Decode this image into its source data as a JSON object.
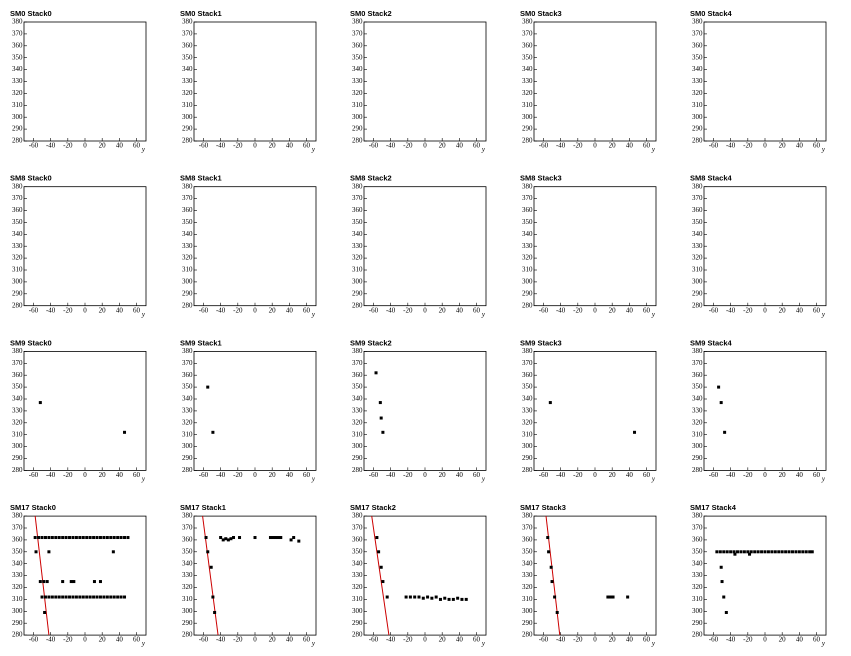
{
  "chart_data": [
    {
      "type": "scatter",
      "title": "SM0 Stack0",
      "xlabel": "y",
      "xlim": [
        -71,
        71
      ],
      "ylim": [
        280,
        380
      ],
      "xticks": [
        -60,
        -40,
        -20,
        0,
        20,
        40,
        60
      ],
      "yticks": [
        280,
        290,
        300,
        310,
        320,
        330,
        340,
        350,
        360,
        370,
        380
      ],
      "color": "#000000",
      "x": [],
      "y": []
    },
    {
      "type": "scatter",
      "title": "SM0 Stack1",
      "xlabel": "y",
      "xlim": [
        -71,
        71
      ],
      "ylim": [
        280,
        380
      ],
      "xticks": [
        -60,
        -40,
        -20,
        0,
        20,
        40,
        60
      ],
      "yticks": [
        280,
        290,
        300,
        310,
        320,
        330,
        340,
        350,
        360,
        370,
        380
      ],
      "color": "#000000",
      "x": [],
      "y": []
    },
    {
      "type": "scatter",
      "title": "SM0 Stack2",
      "xlabel": "y",
      "xlim": [
        -71,
        71
      ],
      "ylim": [
        280,
        380
      ],
      "xticks": [
        -60,
        -40,
        -20,
        0,
        20,
        40,
        60
      ],
      "yticks": [
        280,
        290,
        300,
        310,
        320,
        330,
        340,
        350,
        360,
        370,
        380
      ],
      "color": "#000000",
      "x": [],
      "y": []
    },
    {
      "type": "scatter",
      "title": "SM0 Stack3",
      "xlabel": "y",
      "xlim": [
        -71,
        71
      ],
      "ylim": [
        280,
        380
      ],
      "xticks": [
        -60,
        -40,
        -20,
        0,
        20,
        40,
        60
      ],
      "yticks": [
        280,
        290,
        300,
        310,
        320,
        330,
        340,
        350,
        360,
        370,
        380
      ],
      "color": "#000000",
      "x": [],
      "y": []
    },
    {
      "type": "scatter",
      "title": "SM0 Stack4",
      "xlabel": "y",
      "xlim": [
        -71,
        71
      ],
      "ylim": [
        280,
        380
      ],
      "xticks": [
        -60,
        -40,
        -20,
        0,
        20,
        40,
        60
      ],
      "yticks": [
        280,
        290,
        300,
        310,
        320,
        330,
        340,
        350,
        360,
        370,
        380
      ],
      "color": "#000000",
      "x": [],
      "y": []
    },
    {
      "type": "scatter",
      "title": "SM8 Stack0",
      "xlabel": "y",
      "xlim": [
        -71,
        71
      ],
      "ylim": [
        280,
        380
      ],
      "xticks": [
        -60,
        -40,
        -20,
        0,
        20,
        40,
        60
      ],
      "yticks": [
        280,
        290,
        300,
        310,
        320,
        330,
        340,
        350,
        360,
        370,
        380
      ],
      "color": "#000000",
      "x": [],
      "y": []
    },
    {
      "type": "scatter",
      "title": "SM8 Stack1",
      "xlabel": "y",
      "xlim": [
        -71,
        71
      ],
      "ylim": [
        280,
        380
      ],
      "xticks": [
        -60,
        -40,
        -20,
        0,
        20,
        40,
        60
      ],
      "yticks": [
        280,
        290,
        300,
        310,
        320,
        330,
        340,
        350,
        360,
        370,
        380
      ],
      "color": "#000000",
      "x": [],
      "y": []
    },
    {
      "type": "scatter",
      "title": "SM8 Stack2",
      "xlabel": "y",
      "xlim": [
        -71,
        71
      ],
      "ylim": [
        280,
        380
      ],
      "xticks": [
        -60,
        -40,
        -20,
        0,
        20,
        40,
        60
      ],
      "yticks": [
        280,
        290,
        300,
        310,
        320,
        330,
        340,
        350,
        360,
        370,
        380
      ],
      "color": "#000000",
      "x": [],
      "y": []
    },
    {
      "type": "scatter",
      "title": "SM8 Stack3",
      "xlabel": "y",
      "xlim": [
        -71,
        71
      ],
      "ylim": [
        280,
        380
      ],
      "xticks": [
        -60,
        -40,
        -20,
        0,
        20,
        40,
        60
      ],
      "yticks": [
        280,
        290,
        300,
        310,
        320,
        330,
        340,
        350,
        360,
        370,
        380
      ],
      "color": "#000000",
      "x": [],
      "y": []
    },
    {
      "type": "scatter",
      "title": "SM8 Stack4",
      "xlabel": "y",
      "xlim": [
        -71,
        71
      ],
      "ylim": [
        280,
        380
      ],
      "xticks": [
        -60,
        -40,
        -20,
        0,
        20,
        40,
        60
      ],
      "yticks": [
        280,
        290,
        300,
        310,
        320,
        330,
        340,
        350,
        360,
        370,
        380
      ],
      "color": "#000000",
      "x": [],
      "y": []
    },
    {
      "type": "scatter",
      "title": "SM9 Stack0",
      "xlabel": "y",
      "xlim": [
        -71,
        71
      ],
      "ylim": [
        280,
        380
      ],
      "xticks": [
        -60,
        -40,
        -20,
        0,
        20,
        40,
        60
      ],
      "yticks": [
        280,
        290,
        300,
        310,
        320,
        330,
        340,
        350,
        360,
        370,
        380
      ],
      "color": "#000000",
      "x": [
        -52,
        46
      ],
      "y": [
        337,
        312
      ]
    },
    {
      "type": "scatter",
      "title": "SM9 Stack1",
      "xlabel": "y",
      "xlim": [
        -71,
        71
      ],
      "ylim": [
        280,
        380
      ],
      "xticks": [
        -60,
        -40,
        -20,
        0,
        20,
        40,
        60
      ],
      "yticks": [
        280,
        290,
        300,
        310,
        320,
        330,
        340,
        350,
        360,
        370,
        380
      ],
      "color": "#000000",
      "x": [
        -55,
        -49
      ],
      "y": [
        350,
        312
      ]
    },
    {
      "type": "scatter",
      "title": "SM9 Stack2",
      "xlabel": "y",
      "xlim": [
        -71,
        71
      ],
      "ylim": [
        280,
        380
      ],
      "xticks": [
        -60,
        -40,
        -20,
        0,
        20,
        40,
        60
      ],
      "yticks": [
        280,
        290,
        300,
        310,
        320,
        330,
        340,
        350,
        360,
        370,
        380
      ],
      "color": "#000000",
      "x": [
        -57,
        -52,
        -51,
        -49
      ],
      "y": [
        362,
        337,
        324,
        312
      ]
    },
    {
      "type": "scatter",
      "title": "SM9 Stack3",
      "xlabel": "y",
      "xlim": [
        -71,
        71
      ],
      "ylim": [
        280,
        380
      ],
      "xticks": [
        -60,
        -40,
        -20,
        0,
        20,
        40,
        60
      ],
      "yticks": [
        280,
        290,
        300,
        310,
        320,
        330,
        340,
        350,
        360,
        370,
        380
      ],
      "color": "#000000",
      "x": [
        -52,
        46
      ],
      "y": [
        337,
        312
      ]
    },
    {
      "type": "scatter",
      "title": "SM9 Stack4",
      "xlabel": "y",
      "xlim": [
        -71,
        71
      ],
      "ylim": [
        280,
        380
      ],
      "xticks": [
        -60,
        -40,
        -20,
        0,
        20,
        40,
        60
      ],
      "yticks": [
        280,
        290,
        300,
        310,
        320,
        330,
        340,
        350,
        360,
        370,
        380
      ],
      "color": "#000000",
      "x": [
        -54,
        -51,
        -47
      ],
      "y": [
        350,
        337,
        312
      ]
    },
    {
      "type": "scatter",
      "title": "SM17 Stack0",
      "xlabel": "y",
      "xlim": [
        -71,
        71
      ],
      "ylim": [
        280,
        380
      ],
      "xticks": [
        -60,
        -40,
        -20,
        0,
        20,
        40,
        60
      ],
      "yticks": [
        280,
        290,
        300,
        310,
        320,
        330,
        340,
        350,
        360,
        370,
        380
      ],
      "color": "#000000",
      "x": [
        -58,
        -54,
        -50,
        -46,
        -42,
        -38,
        -34,
        -30,
        -26,
        -22,
        -18,
        -14,
        -10,
        -6,
        -2,
        2,
        6,
        10,
        14,
        18,
        22,
        26,
        30,
        34,
        38,
        42,
        46,
        50,
        -50,
        -46,
        -42,
        -38,
        -34,
        -30,
        -26,
        -22,
        -18,
        -14,
        -10,
        -6,
        -2,
        2,
        6,
        10,
        14,
        18,
        22,
        26,
        30,
        34,
        38,
        42,
        46,
        -57,
        -42,
        33,
        -52,
        -48,
        -44,
        -26,
        -16,
        -13,
        11,
        18,
        -47
      ],
      "y": [
        362,
        362,
        362,
        362,
        362,
        362,
        362,
        362,
        362,
        362,
        362,
        362,
        362,
        362,
        362,
        362,
        362,
        362,
        362,
        362,
        362,
        362,
        362,
        362,
        362,
        362,
        362,
        362,
        312,
        312,
        312,
        312,
        312,
        312,
        312,
        312,
        312,
        312,
        312,
        312,
        312,
        312,
        312,
        312,
        312,
        312,
        312,
        312,
        312,
        312,
        312,
        312,
        312,
        350,
        350,
        350,
        325,
        325,
        325,
        325,
        325,
        325,
        325,
        325,
        299
      ],
      "fit_x": [
        -58,
        -42
      ],
      "fit_y": [
        380,
        280
      ],
      "fit_color": "#cc0000"
    },
    {
      "type": "scatter",
      "title": "SM17 Stack1",
      "xlabel": "y",
      "xlim": [
        -71,
        71
      ],
      "ylim": [
        280,
        380
      ],
      "xticks": [
        -60,
        -40,
        -20,
        0,
        20,
        40,
        60
      ],
      "yticks": [
        280,
        290,
        300,
        310,
        320,
        330,
        340,
        350,
        360,
        370,
        380
      ],
      "color": "#000000",
      "x": [
        -57,
        -55,
        -51,
        -49,
        -47,
        -40,
        -37,
        -34,
        -31,
        -28,
        -25,
        -18,
        0,
        18,
        21,
        24,
        27,
        30,
        42,
        45,
        51
      ],
      "y": [
        362,
        350,
        337,
        312,
        299,
        362,
        360,
        361,
        360,
        361,
        362,
        362,
        362,
        362,
        362,
        362,
        362,
        362,
        360,
        362,
        359
      ],
      "fit_x": [
        -61,
        -43
      ],
      "fit_y": [
        380,
        280
      ],
      "fit_color": "#cc0000"
    },
    {
      "type": "scatter",
      "title": "SM17 Stack2",
      "xlabel": "y",
      "xlim": [
        -71,
        71
      ],
      "ylim": [
        280,
        380
      ],
      "xticks": [
        -60,
        -40,
        -20,
        0,
        20,
        40,
        60
      ],
      "yticks": [
        280,
        290,
        300,
        310,
        320,
        330,
        340,
        350,
        360,
        370,
        380
      ],
      "color": "#000000",
      "x": [
        -56,
        -54,
        -51,
        -49,
        -44,
        -22,
        -17,
        -12,
        -7,
        -2,
        3,
        8,
        13,
        18,
        23,
        28,
        33,
        38,
        43,
        48
      ],
      "y": [
        362,
        350,
        337,
        325,
        312,
        312,
        312,
        312,
        312,
        311,
        312,
        311,
        312,
        310,
        311,
        310,
        310,
        311,
        310,
        310
      ],
      "fit_x": [
        -62,
        -42
      ],
      "fit_y": [
        380,
        280
      ],
      "fit_color": "#cc0000"
    },
    {
      "type": "scatter",
      "title": "SM17 Stack3",
      "xlabel": "y",
      "xlim": [
        -71,
        71
      ],
      "ylim": [
        280,
        380
      ],
      "xticks": [
        -60,
        -40,
        -20,
        0,
        20,
        40,
        60
      ],
      "yticks": [
        280,
        290,
        300,
        310,
        320,
        330,
        340,
        350,
        360,
        370,
        380
      ],
      "color": "#000000",
      "x": [
        -55,
        -54,
        -51,
        -50,
        -47,
        -44,
        15,
        17,
        19,
        21,
        38
      ],
      "y": [
        362,
        350,
        337,
        325,
        312,
        299,
        312,
        312,
        312,
        312,
        312
      ],
      "fit_x": [
        -57,
        -41
      ],
      "fit_y": [
        380,
        280
      ],
      "fit_color": "#cc0000"
    },
    {
      "type": "scatter",
      "title": "SM17 Stack4",
      "xlabel": "y",
      "xlim": [
        -71,
        71
      ],
      "ylim": [
        280,
        380
      ],
      "xticks": [
        -60,
        -40,
        -20,
        0,
        20,
        40,
        60
      ],
      "yticks": [
        280,
        290,
        300,
        310,
        320,
        330,
        340,
        350,
        360,
        370,
        380
      ],
      "color": "#000000",
      "x": [
        -56,
        -52,
        -48,
        -44,
        -40,
        -36,
        -32,
        -28,
        -24,
        -20,
        -16,
        -12,
        -8,
        -4,
        0,
        4,
        8,
        12,
        16,
        20,
        24,
        28,
        32,
        36,
        40,
        44,
        48,
        52,
        55,
        -35,
        -18,
        -51,
        -50,
        -48,
        -45
      ],
      "y": [
        350,
        350,
        350,
        350,
        350,
        350,
        350,
        350,
        350,
        350,
        350,
        350,
        350,
        350,
        350,
        350,
        350,
        350,
        350,
        350,
        350,
        350,
        350,
        350,
        350,
        350,
        350,
        350,
        350,
        348,
        348,
        337,
        325,
        312,
        299
      ]
    }
  ]
}
